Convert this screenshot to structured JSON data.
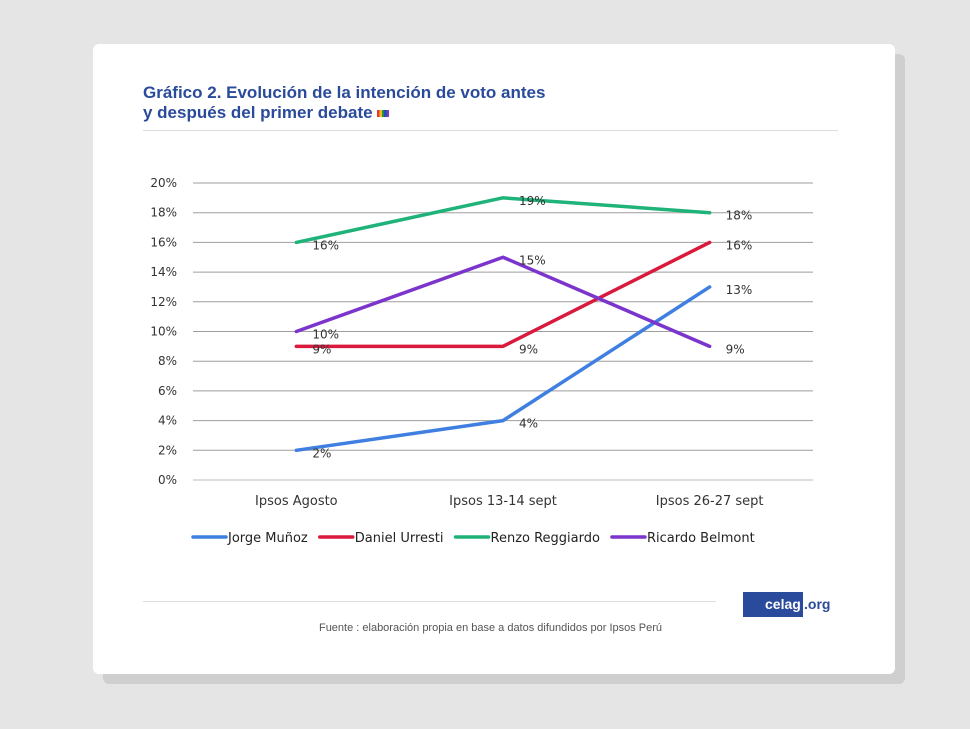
{
  "header": {
    "title_line1": "Gráfico 2. Evolución de la intención de voto antes",
    "title_line2": "y después del primer debate"
  },
  "footer": {
    "source": "Fuente : elaboración propia en base a datos difundidos por Ipsos Perú",
    "logo_main": "celag",
    "logo_tld": ".org"
  },
  "chart_data": {
    "type": "line",
    "categories": [
      "Ipsos Agosto",
      "Ipsos 13-14 sept",
      "Ipsos 26-27 sept"
    ],
    "ylim": [
      0,
      20
    ],
    "yticks": [
      "0%",
      "2%",
      "4%",
      "6%",
      "8%",
      "10%",
      "12%",
      "14%",
      "16%",
      "18%",
      "20%"
    ],
    "grid": true,
    "legend_position": "bottom",
    "series": [
      {
        "name": "Jorge Muñoz",
        "color": "#3f7fe0",
        "values": [
          2,
          4,
          13
        ],
        "labels": [
          "2%",
          "4%",
          "13%"
        ]
      },
      {
        "name": "Daniel Urresti",
        "color": "#d91a3c",
        "values": [
          9,
          9,
          16
        ],
        "labels": [
          "9%",
          "9%",
          "16%"
        ]
      },
      {
        "name": "Renzo Reggiardo",
        "color": "#1fb37a",
        "values": [
          16,
          19,
          18
        ],
        "labels": [
          "16%",
          "19%",
          "18%"
        ]
      },
      {
        "name": "Ricardo Belmont",
        "color": "#7b35cc",
        "values": [
          10,
          15,
          9
        ],
        "labels": [
          "10%",
          "15%",
          "9%"
        ]
      }
    ]
  }
}
